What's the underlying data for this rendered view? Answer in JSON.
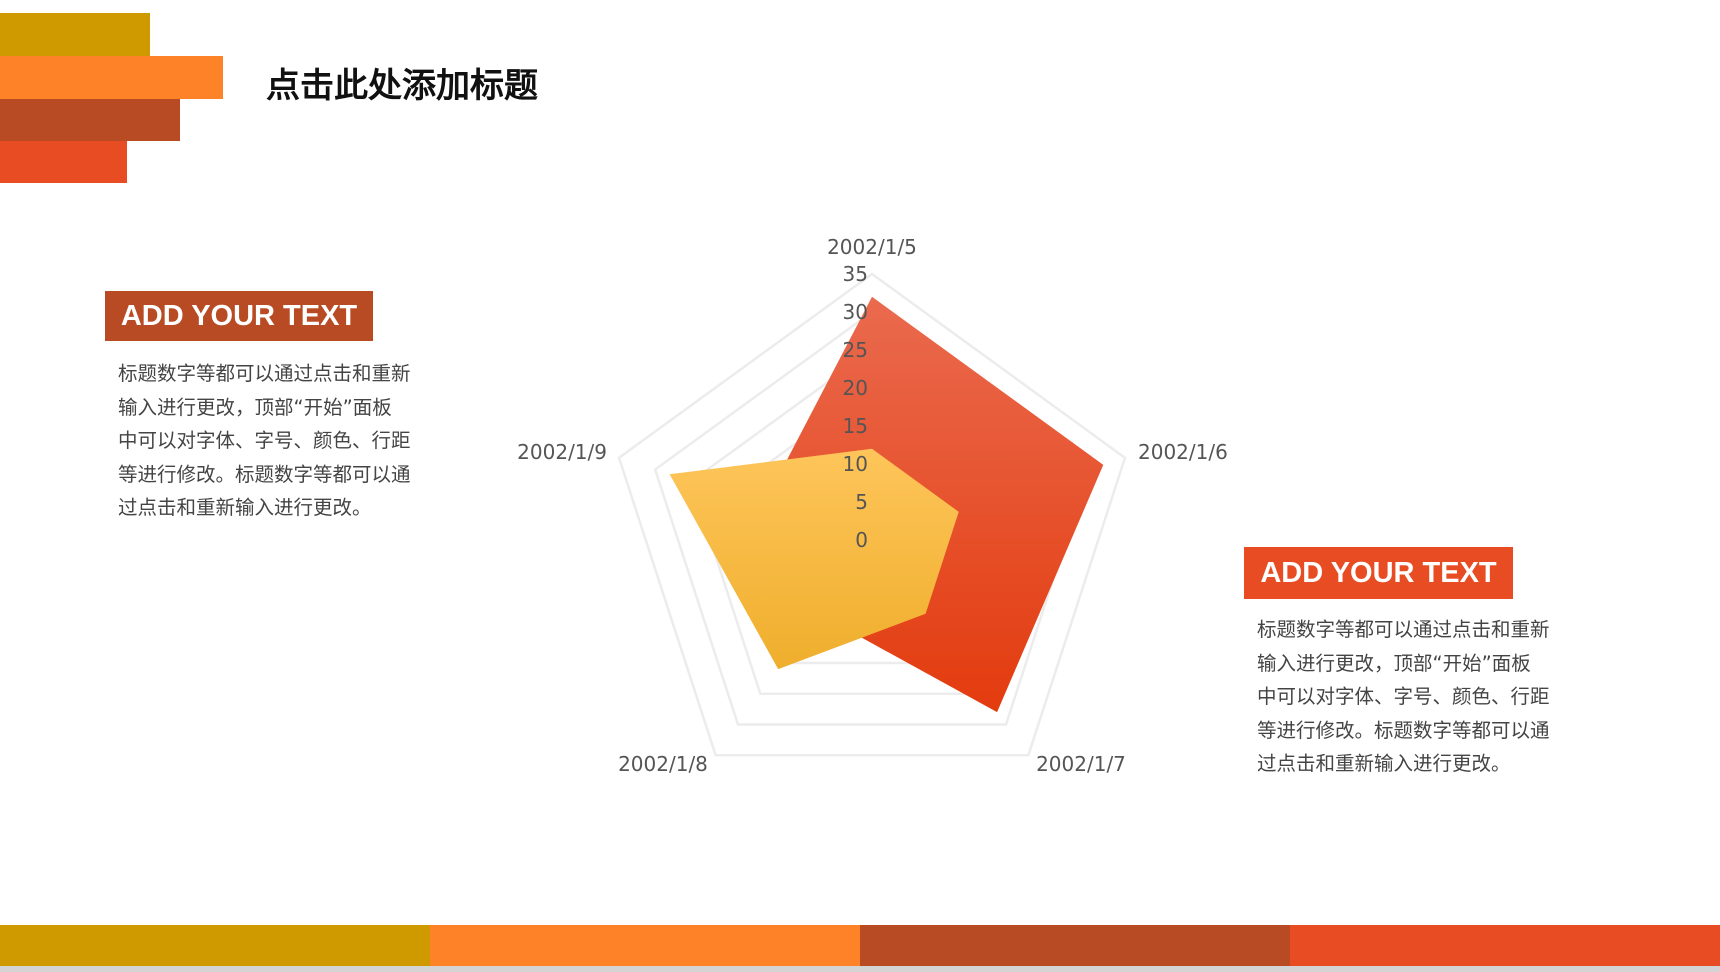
{
  "header": {
    "title": "点击此处添加标题",
    "accent_bars": [
      "#cf9a00",
      "#fd8228",
      "#b84b23",
      "#e84c22"
    ]
  },
  "left_panel": {
    "label": "ADD YOUR TEXT",
    "label_color": "#b84b23",
    "lines": [
      "标题数字等都可以通过点击和重新",
      "输入进行更改，顶部“开始”面板",
      "中可以对字体、字号、颜色、行距",
      "等进行修改。标题数字等都可以通",
      "过点击和重新输入进行更改。"
    ]
  },
  "right_panel": {
    "label": "ADD YOUR TEXT",
    "label_color": "#e84c22",
    "lines": [
      "标题数字等都可以通过点击和重新",
      "输入进行更改，顶部“开始”面板",
      "中可以对字体、字号、颜色、行距",
      "等进行修改。标题数字等都可以通",
      "过点击和重新输入进行更改。"
    ]
  },
  "footer": {
    "bars": [
      "#cf9a00",
      "#fd8228",
      "#b84b23",
      "#e84c22"
    ]
  },
  "chart_data": {
    "type": "radar",
    "categories": [
      "2002/1/5",
      "2002/1/6",
      "2002/1/7",
      "2002/1/8",
      "2002/1/9"
    ],
    "rlim": [
      0,
      35
    ],
    "ticks": [
      "0",
      "5",
      "10",
      "15",
      "20",
      "25",
      "30",
      "35"
    ],
    "grid": true,
    "series": [
      {
        "values": [
          32,
          32,
          28,
          12,
          15
        ],
        "color_top": "#ea6a4e",
        "color_bottom": "#e33b0e"
      },
      {
        "values": [
          12,
          12,
          12,
          21,
          28
        ],
        "color_top": "#fec55a",
        "color_bottom": "#efae2c"
      }
    ]
  }
}
